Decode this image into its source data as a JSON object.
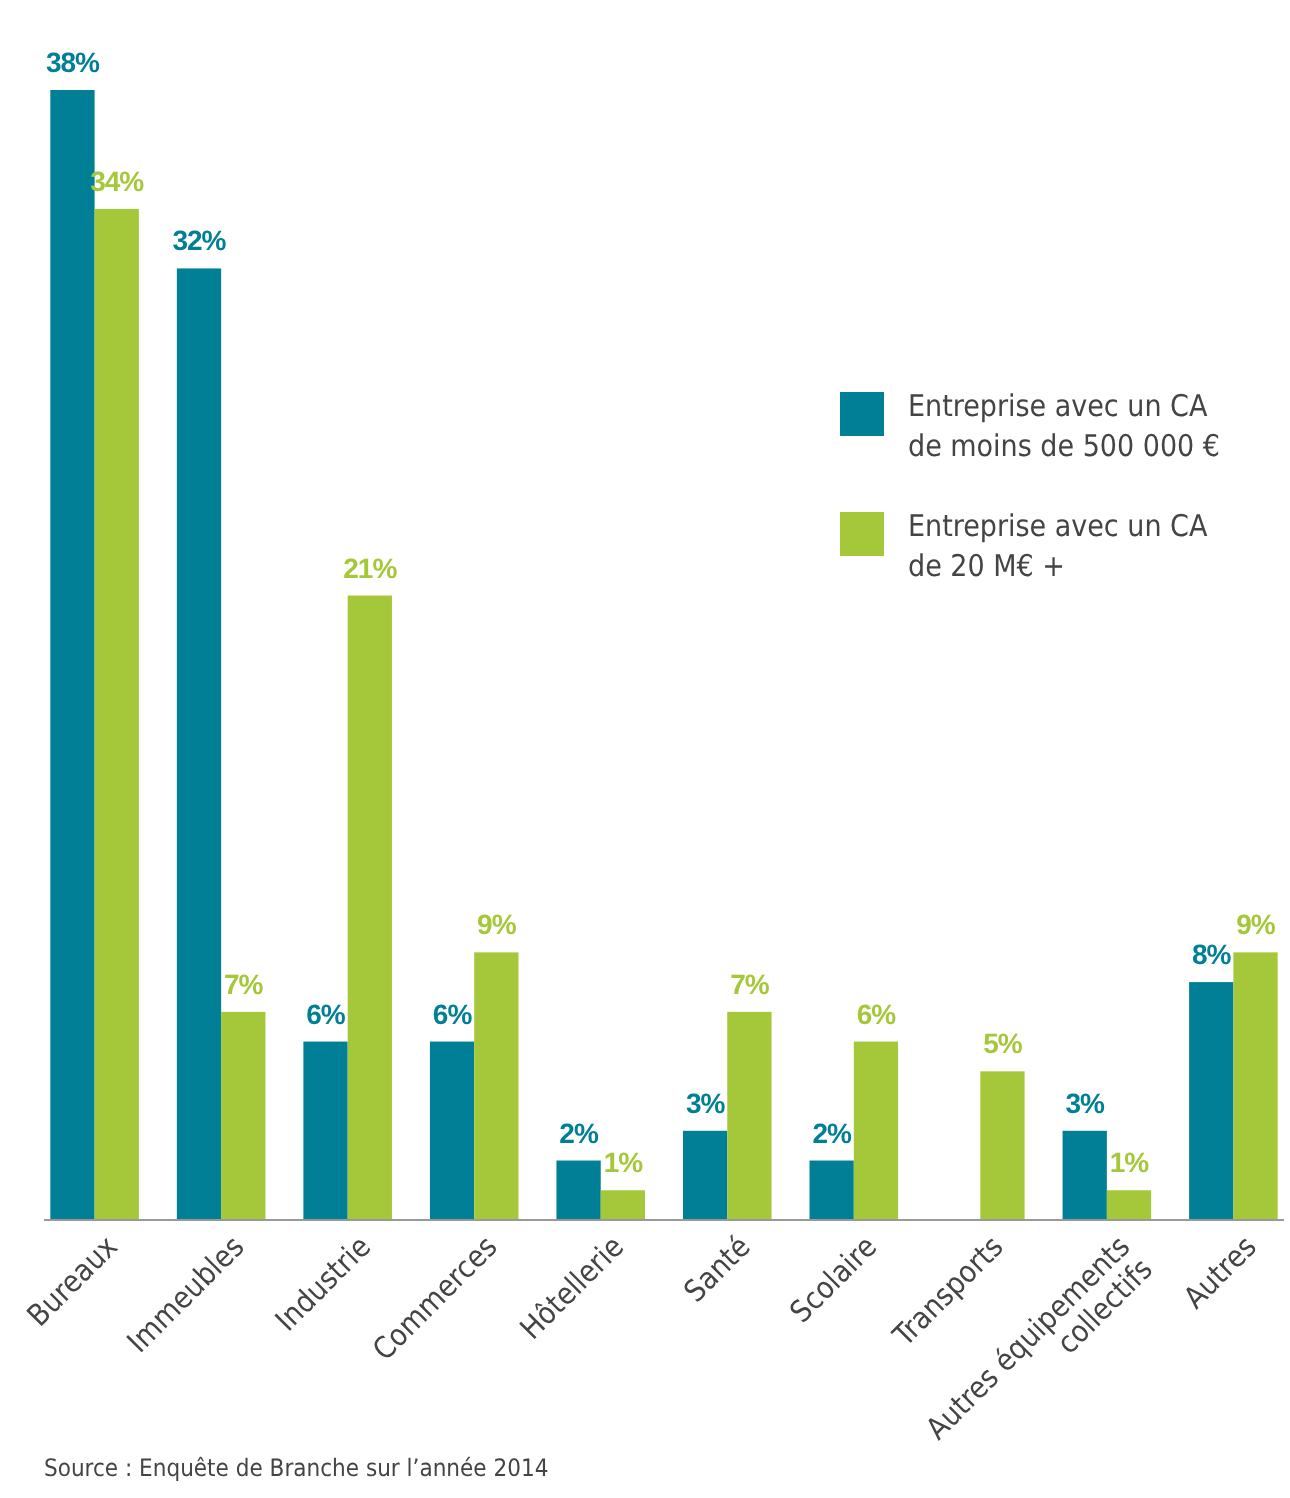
{
  "chart_data": {
    "type": "bar",
    "categories": [
      "Bureaux",
      "Immeubles",
      "Industrie",
      "Commerces",
      "Hôtellerie",
      "Santé",
      "Scolaire",
      "Transports",
      "Autres équipements\ncollectifs",
      "Autres"
    ],
    "series": [
      {
        "name": "Entreprise avec un CA\nde moins de 500 000 €",
        "color": "#007f96",
        "values": [
          38,
          32,
          6,
          6,
          2,
          3,
          2,
          null,
          3,
          8
        ],
        "value_labels": [
          "38%",
          "32%",
          "6%",
          "6%",
          "2%",
          "3%",
          "2%",
          null,
          "3%",
          "8%"
        ]
      },
      {
        "name": "Entreprise avec un CA\nde 20 M€ +",
        "color": "#a5c83a",
        "values": [
          34,
          7,
          21,
          9,
          1,
          7,
          6,
          5,
          1,
          9
        ],
        "value_labels": [
          "34%",
          "7%",
          "21%",
          "9%",
          "1%",
          "7%",
          "6%",
          "5%",
          "1%",
          "9%"
        ]
      }
    ],
    "legend": "top right",
    "annotations": [
      "Source : Enquête de Branche sur l’année 2014"
    ]
  }
}
